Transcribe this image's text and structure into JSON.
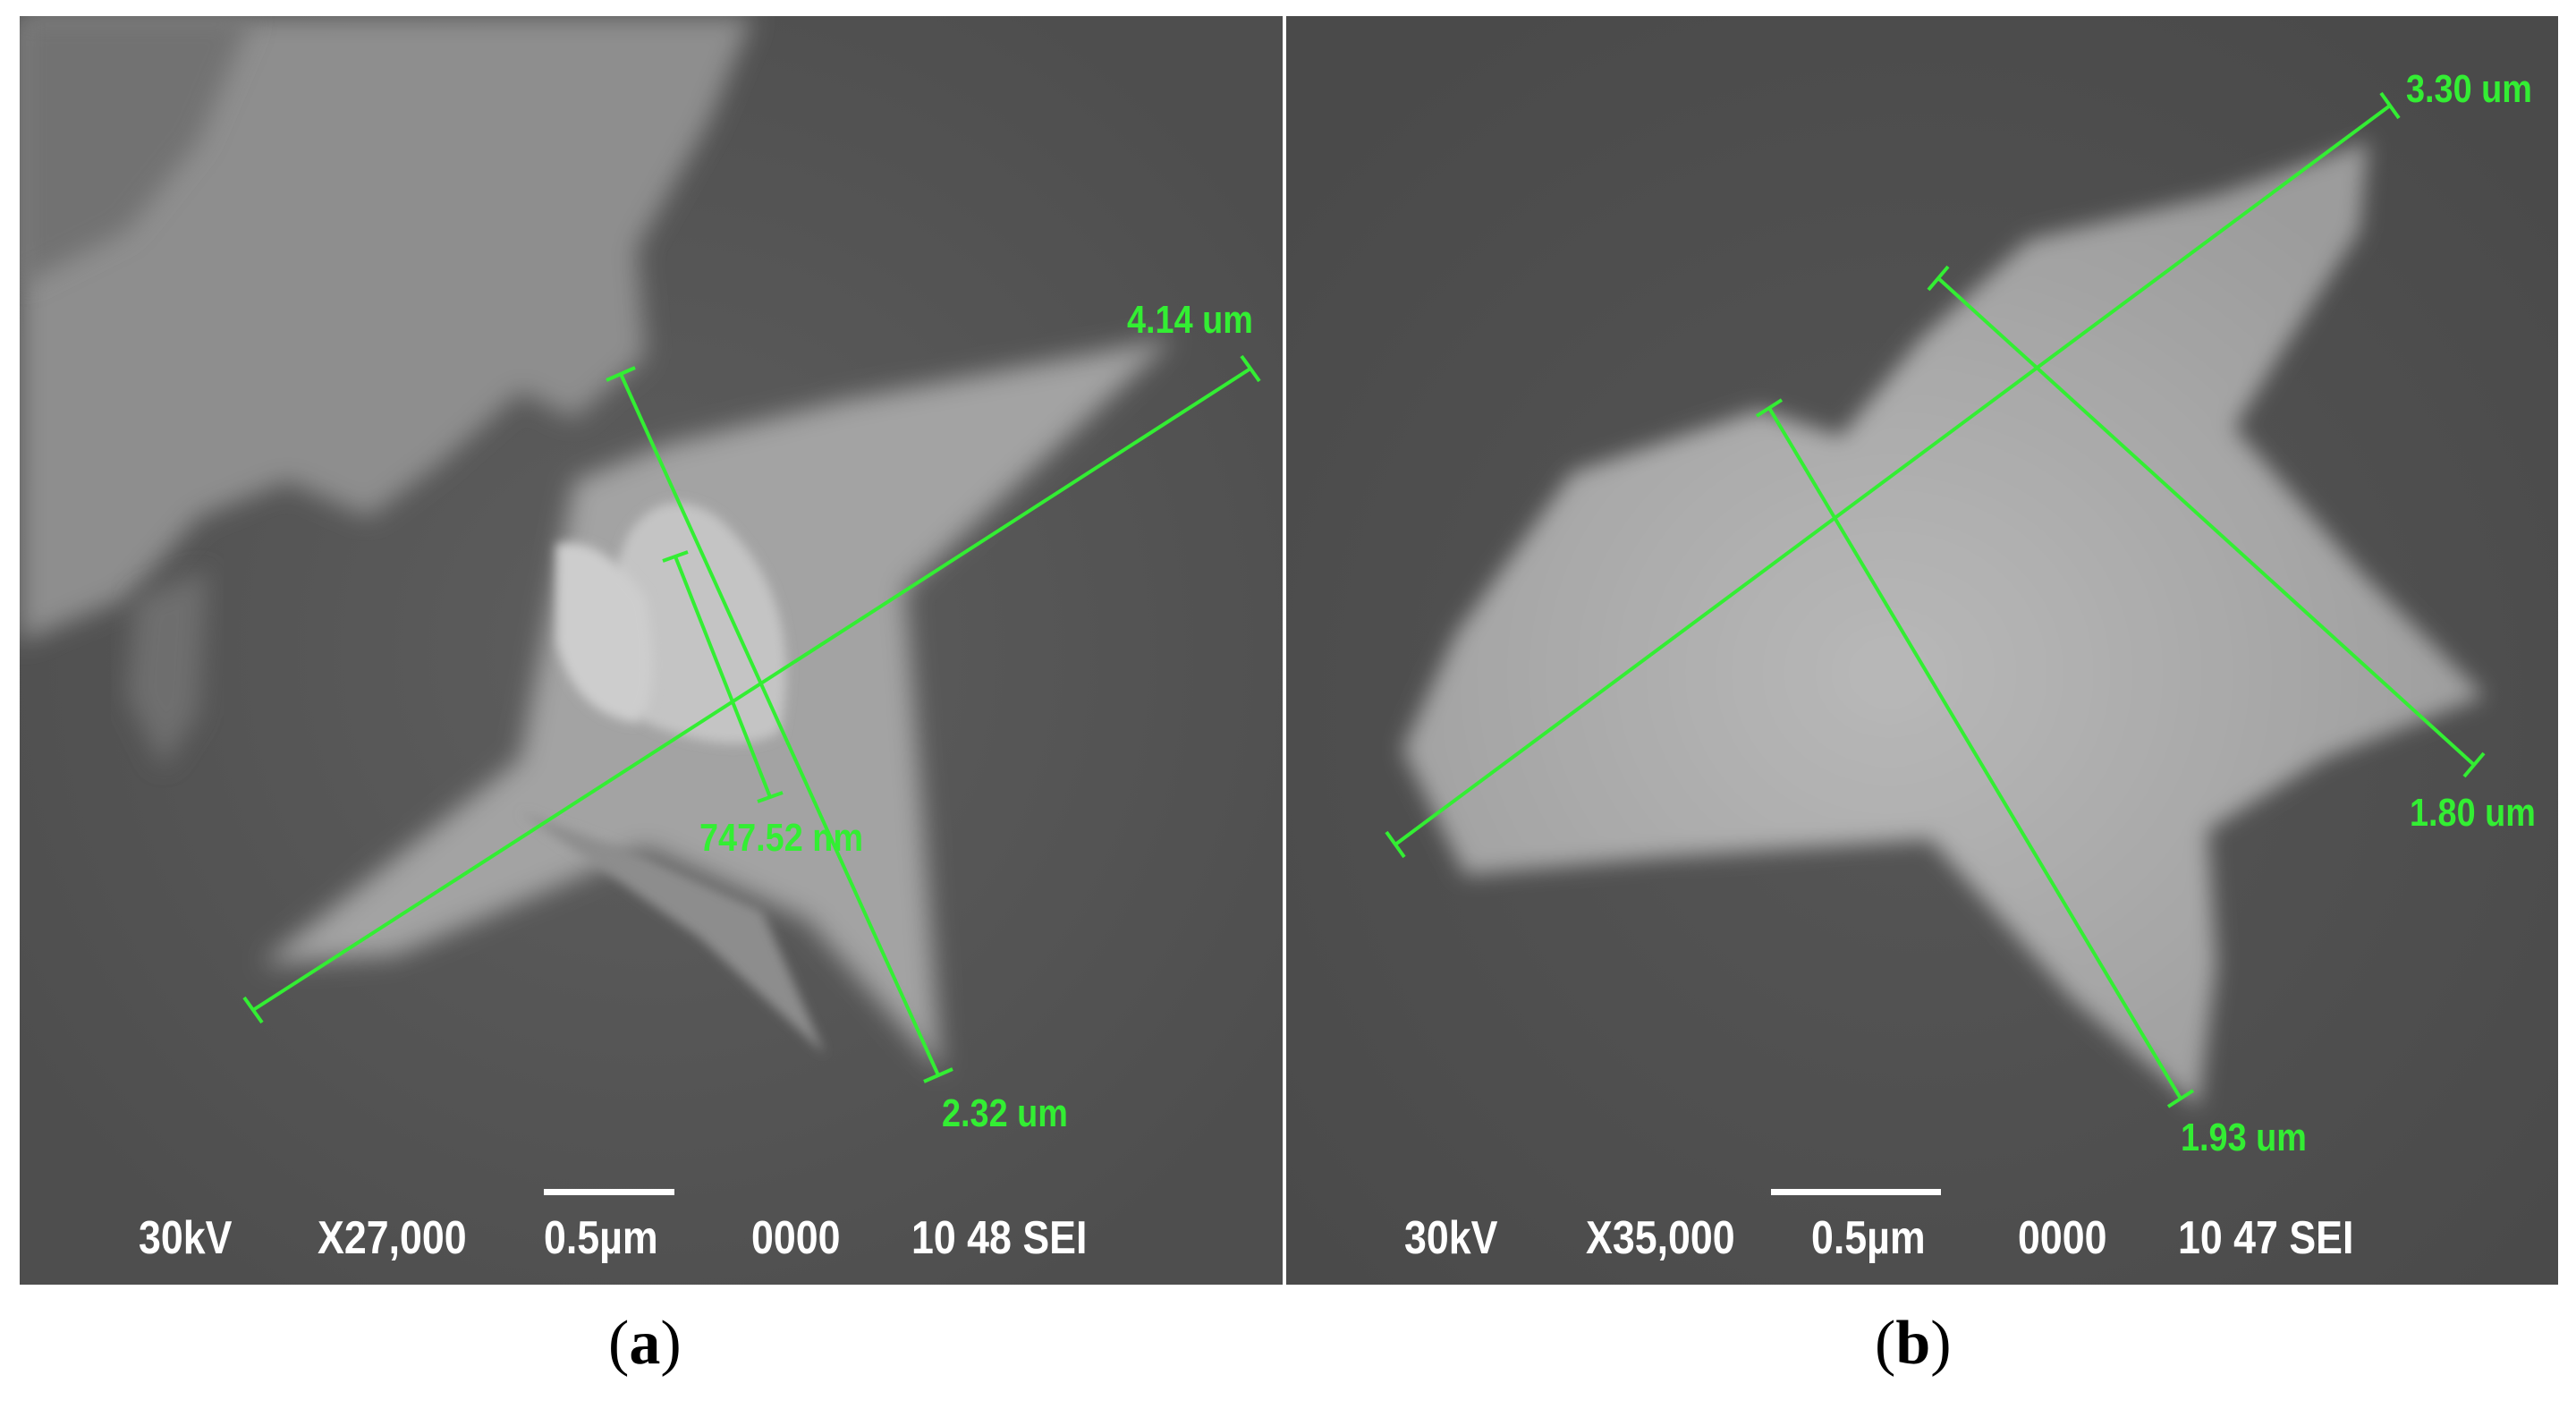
{
  "panels": [
    {
      "caption_label": "a",
      "measurements": [
        "4.14 um",
        "747.52 nm",
        "2.32 um"
      ],
      "info": {
        "voltage": "30kV",
        "magnification": "X27,000",
        "scale": "0.5µm",
        "code": "0000",
        "detector": "10 48 SEI"
      }
    },
    {
      "caption_label": "b",
      "measurements": [
        "3.30 um",
        "1.80 um",
        "1.93 um"
      ],
      "info": {
        "voltage": "30kV",
        "magnification": "X35,000",
        "scale": "0.5µm",
        "code": "0000",
        "detector": "10 47 SEI"
      }
    }
  ],
  "colors": {
    "measure_line": "#33ee33",
    "sem_background": "#5a5a5a",
    "particle": "#b4b4b4",
    "info_text": "#ffffff"
  }
}
